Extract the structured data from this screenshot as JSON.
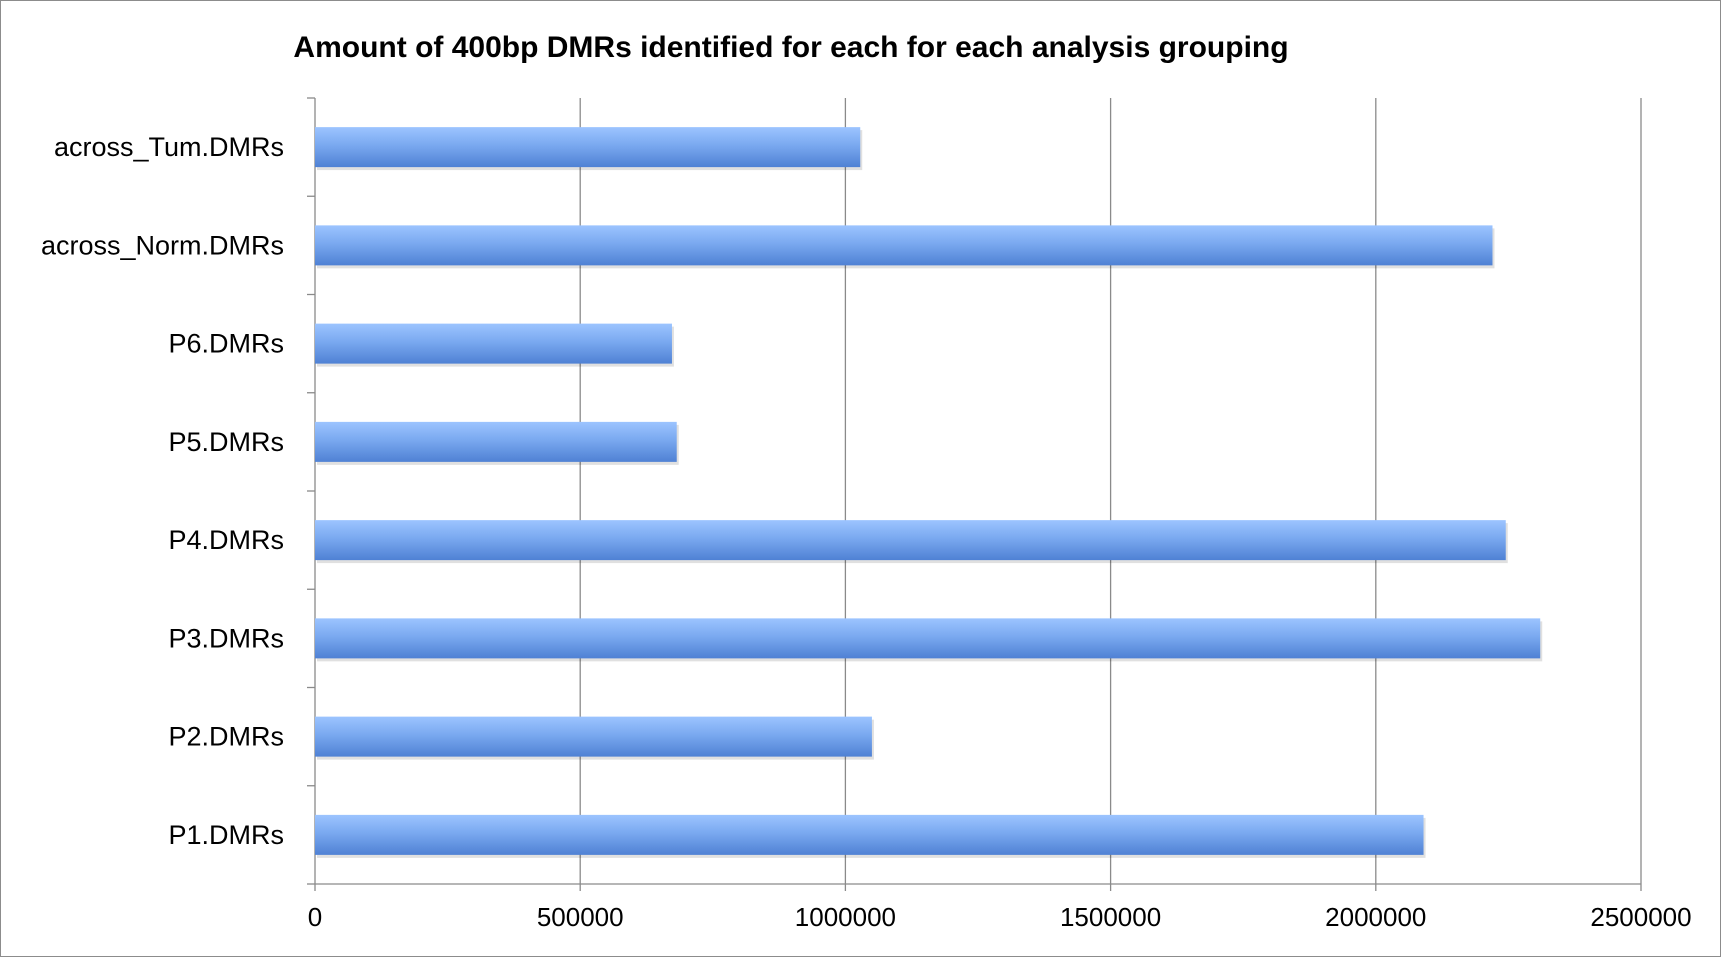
{
  "chart_data": {
    "type": "bar",
    "orientation": "horizontal",
    "title": "Amount of 400bp DMRs identified for each for each analysis grouping",
    "xlabel": "",
    "ylabel": "",
    "categories": [
      "P1.DMRs",
      "P2.DMRs",
      "P3.DMRs",
      "P4.DMRs",
      "P5.DMRs",
      "P6.DMRs",
      "across_Norm.DMRs",
      "across_Tum.DMRs"
    ],
    "values": [
      2090000,
      1050000,
      2310000,
      2245000,
      682000,
      673000,
      2220000,
      1028000
    ],
    "xlim": [
      0,
      2500000
    ],
    "xticks": [
      "0",
      "500000",
      "1000000",
      "1500000",
      "2000000",
      "2500000"
    ],
    "grid": "vertical",
    "legend": "none",
    "bar_color": "#4f81d4",
    "bar_color_light": "#9cc4ff"
  }
}
